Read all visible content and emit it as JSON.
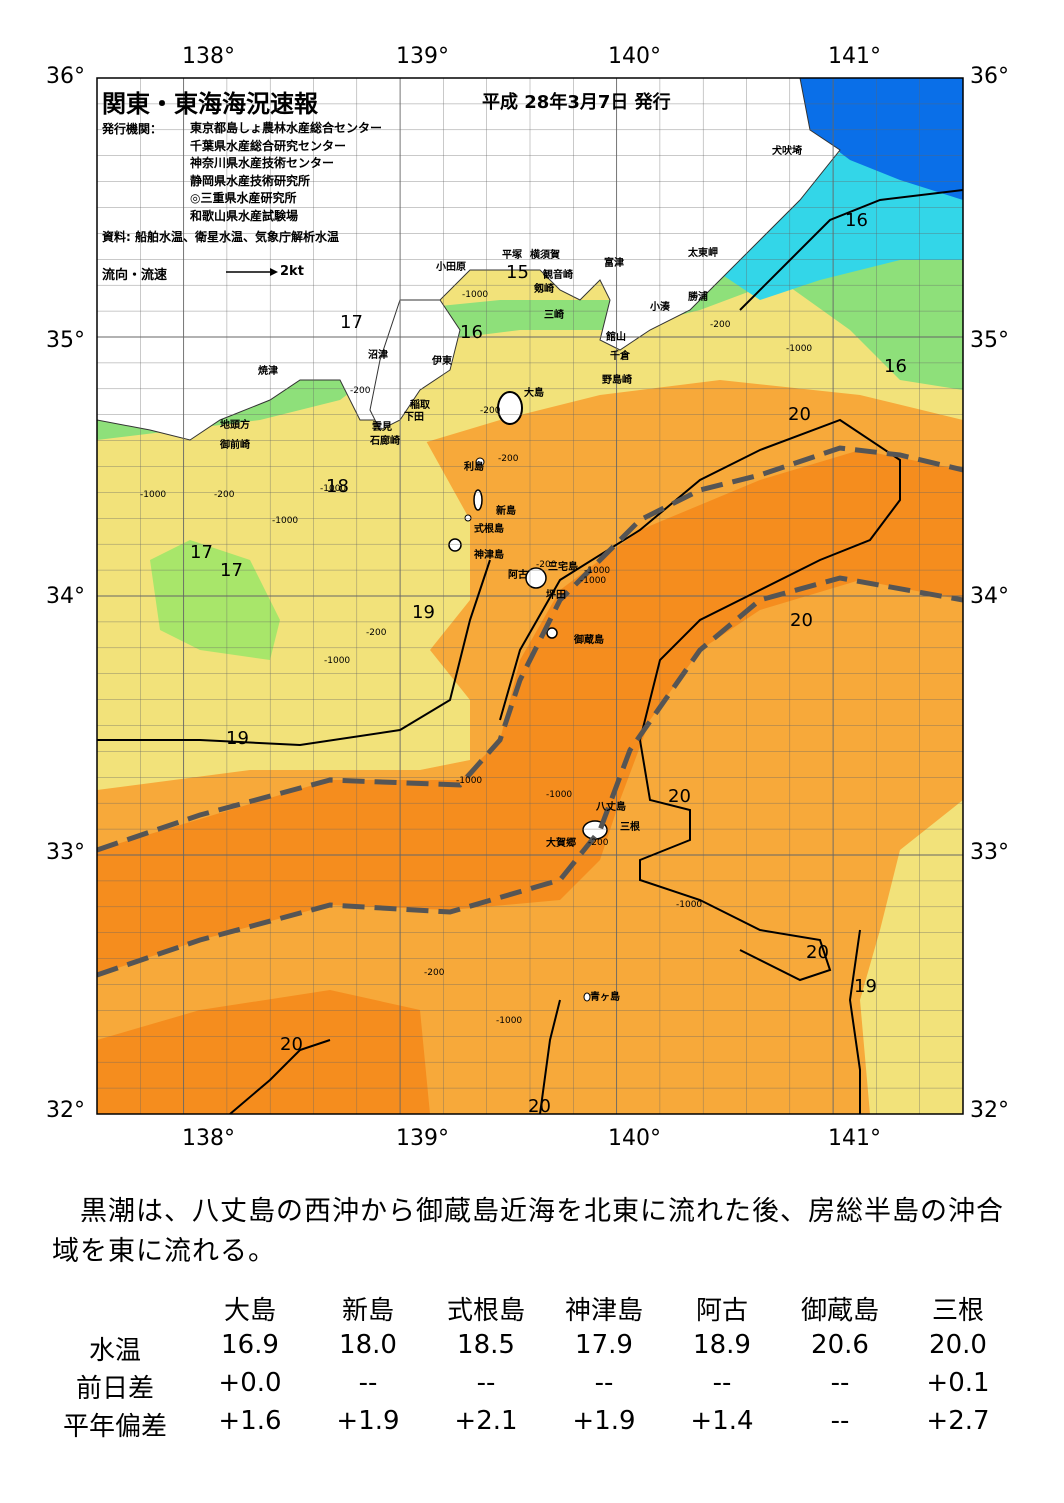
{
  "map": {
    "title": "関東・東海海況速報",
    "issue_date": "平成 28年3月7日 発行",
    "agency_label": "発行機関：",
    "agencies": [
      "東京都島しょ農林水産総合センター",
      "千葉県水産総合研究センター",
      "神奈川県水産技術センター",
      "静岡県水産技術研究所",
      "◎三重県水産研究所",
      "和歌山県水産試験場"
    ],
    "source": "資料: 船舶水温、衛星水温、気象庁解析水温",
    "legend_label": "流向・流速",
    "legend_speed": "2kt",
    "lon_labels": [
      "138°",
      "139°",
      "140°",
      "141°"
    ],
    "lat_labels": [
      "36°",
      "35°",
      "34°",
      "33°",
      "32°"
    ],
    "places": [
      "犬吠埼",
      "太東岬",
      "勝浦",
      "小湊",
      "館山",
      "千倉",
      "野島崎",
      "富津",
      "横須賀",
      "観音崎",
      "平塚",
      "剱崎",
      "三崎",
      "小田原",
      "沼津",
      "伊東",
      "焼津",
      "稲取",
      "下田",
      "雲見",
      "石廊崎",
      "地頭方",
      "御前崎",
      "大島",
      "利島",
      "新島",
      "式根島",
      "神津島",
      "三宅島",
      "阿古",
      "坪田",
      "御蔵島",
      "八丈島",
      "三根",
      "大賀郷",
      "青ヶ島"
    ],
    "isotherms": [
      "15",
      "16",
      "16",
      "16",
      "17",
      "17",
      "17",
      "18",
      "19",
      "19",
      "19",
      "20",
      "20",
      "20",
      "20",
      "20",
      "20"
    ],
    "depths": [
      "-1000",
      "-200",
      "-1000",
      "-200",
      "-1000",
      "-200",
      "-200",
      "-1000",
      "-200",
      "-1000",
      "-1000",
      "-200",
      "-1000",
      "-1000",
      "-1000",
      "-200",
      "-1000",
      "-200",
      "-1000",
      "-200",
      "-1000"
    ],
    "colors": {
      "cold": "#0a6fe8",
      "cyan": "#33d6e8",
      "green": "#8ee07a",
      "yellow": "#f2e27a",
      "orange": "#f7a93a",
      "deep_orange": "#f58d1e",
      "kuroshio": "#555555"
    }
  },
  "summary": "黒潮は、八丈島の西沖から御蔵島近海を北東に流れた後、房総半島の沖合域を東に流れる。",
  "table": {
    "stations": [
      "大島",
      "新島",
      "式根島",
      "神津島",
      "阿古",
      "御蔵島",
      "三根"
    ],
    "rows": [
      {
        "label": "水温",
        "values": [
          "16.9",
          "18.0",
          "18.5",
          "17.9",
          "18.9",
          "20.6",
          "20.0"
        ]
      },
      {
        "label": "前日差",
        "values": [
          "+0.0",
          "--",
          "--",
          "--",
          "--",
          "--",
          "+0.1"
        ]
      },
      {
        "label": "平年偏差",
        "values": [
          "+1.6",
          "+1.9",
          "+2.1",
          "+1.9",
          "+1.4",
          "--",
          "+2.7"
        ]
      }
    ]
  }
}
